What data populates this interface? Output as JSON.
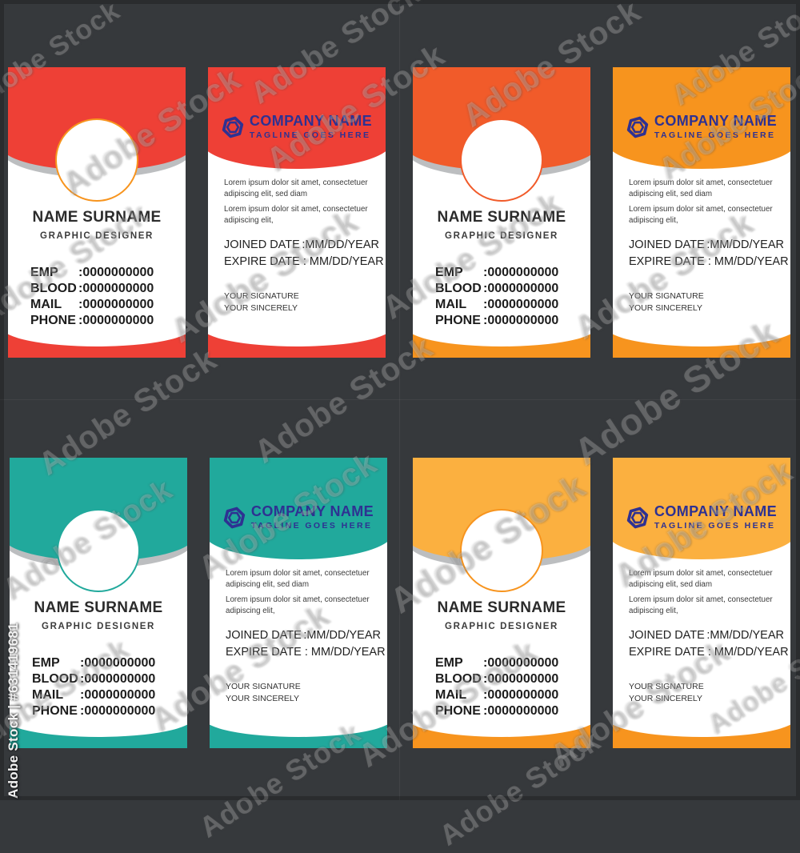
{
  "watermark": {
    "brand": "Adobe Stock",
    "id_label": "Adobe Stock | #631419681"
  },
  "icons": {
    "logo": "hexagon-outline-icon"
  },
  "colors": {
    "background": "#36393C",
    "ribbon_gray": "#BCBEC0",
    "brand_blue": "#2E3192",
    "card_white": "#FFFFFF"
  },
  "cards": {
    "front": {
      "name": "NAME SURNAME",
      "role": "GRAPHIC DESIGNER",
      "fields": [
        {
          "label": "EMP",
          "value": ":0000000000"
        },
        {
          "label": "BLOOD",
          "value": ":0000000000"
        },
        {
          "label": "MAIL",
          "value": ":0000000000"
        },
        {
          "label": "PHONE",
          "value": ":0000000000"
        }
      ]
    },
    "back": {
      "company": "COMPANY NAME",
      "tagline": "TAGLINE GOES HERE",
      "paragraph1_line1": "Lorem ipsum dolor sit amet, consectetuer",
      "paragraph1_line2": "adipiscing elit, sed diam",
      "paragraph2_line1": "Lorem ipsum dolor sit amet, consectetuer",
      "paragraph2_line2": "adipiscing elit,",
      "joined_label": "JOINED DATE",
      "joined_value": ":MM/DD/YEAR",
      "expire_label": "EXPIRE DATE :",
      "expire_value": "MM/DD/YEAR",
      "signature_line1": "YOUR SIGNATURE",
      "signature_line2": "YOUR SINCERELY"
    },
    "themes": [
      {
        "name": "red",
        "header": "#EE4036",
        "back_header": "#EE4036",
        "footer": "#EE4036",
        "back_footer": "#EE4036",
        "ring": "#F7941E"
      },
      {
        "name": "orange",
        "header": "#F15B2A",
        "back_header": "#F7941E",
        "footer": "#F7941E",
        "back_footer": "#F7941E",
        "ring": "#F15B2A"
      },
      {
        "name": "teal",
        "header": "#21A99C",
        "back_header": "#21A99C",
        "footer": "#21A99C",
        "back_footer": "#21A99C",
        "ring": "#21A99C"
      },
      {
        "name": "yellow",
        "header": "#FBB040",
        "back_header": "#FBB040",
        "footer": "#F7941E",
        "back_footer": "#F7941E",
        "ring": "#F7941E"
      }
    ]
  }
}
